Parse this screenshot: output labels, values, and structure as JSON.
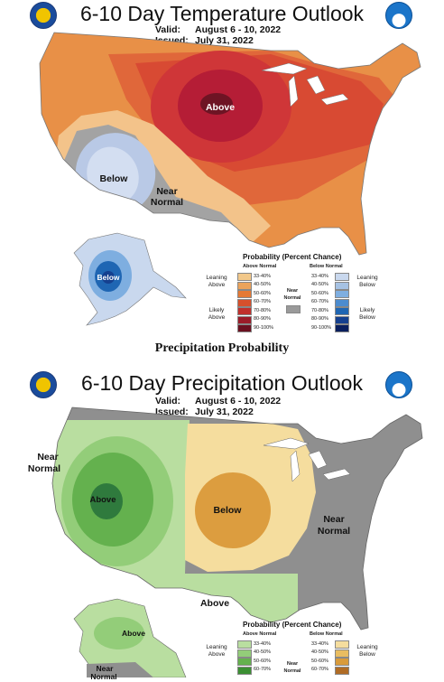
{
  "temperature": {
    "title": "6-10 Day Temperature Outlook",
    "valid_key": "Valid:",
    "valid_value": "August 6 - 10, 2022",
    "issued_key": "Issued:",
    "issued_value": "July 31, 2022",
    "labels": {
      "above": "Above",
      "below": "Below",
      "near": "Near",
      "normal": "Normal",
      "alaska_below": "Below"
    },
    "legend": {
      "title": "Probability (Percent Chance)",
      "above_header": "Above Normal",
      "below_header": "Below Normal",
      "near_header_1": "Near",
      "near_header_2": "Normal",
      "leaning_above_1": "Leaning",
      "leaning_above_2": "Above",
      "likely_above_1": "Likely",
      "likely_above_2": "Above",
      "leaning_below_1": "Leaning",
      "leaning_below_2": "Below",
      "likely_below_1": "Likely",
      "likely_below_2": "Below",
      "bins": [
        "33-40%",
        "40-50%",
        "50-60%",
        "60-70%",
        "70-80%",
        "80-90%",
        "90-100%"
      ],
      "above_colors": [
        "#f2c88a",
        "#eba35b",
        "#e57935",
        "#d6502c",
        "#c0302c",
        "#9b1c29",
        "#6b1020"
      ],
      "below_colors": [
        "#c9d8ee",
        "#a6c2e3",
        "#7eaee0",
        "#4c8ccf",
        "#1f66b3",
        "#15408f",
        "#0a1f5e"
      ],
      "near_color": "#9a9a9a"
    }
  },
  "section_caption": "Precipitation Probability",
  "precipitation": {
    "title": "6-10 Day Precipitation Outlook",
    "valid_key": "Valid:",
    "valid_value": "August 6 - 10, 2022",
    "issued_key": "Issued:",
    "issued_value": "July 31, 2022",
    "labels": {
      "west_near": "Near",
      "west_normal": "Normal",
      "above": "Above",
      "below": "Below",
      "east_near": "Near",
      "east_normal": "Normal",
      "south_above": "Above",
      "alaska_above": "Above",
      "alaska_near": "Near",
      "alaska_normal": "Normal"
    },
    "legend": {
      "title": "Probability (Percent Chance)",
      "above_header": "Above Normal",
      "below_header": "Below Normal",
      "near_header_1": "Near",
      "near_header_2": "Normal",
      "leaning_above_1": "Leaning",
      "leaning_above_2": "Above",
      "leaning_below_1": "Leaning",
      "leaning_below_2": "Below",
      "bins": [
        "33-40%",
        "40-50%",
        "50-60%",
        "60-70%"
      ],
      "above_colors": [
        "#b9dea0",
        "#93cd79",
        "#64b14e",
        "#3b8f33"
      ],
      "below_colors": [
        "#f5dd9e",
        "#e9bd61",
        "#d99b3b",
        "#b06c25"
      ]
    }
  }
}
